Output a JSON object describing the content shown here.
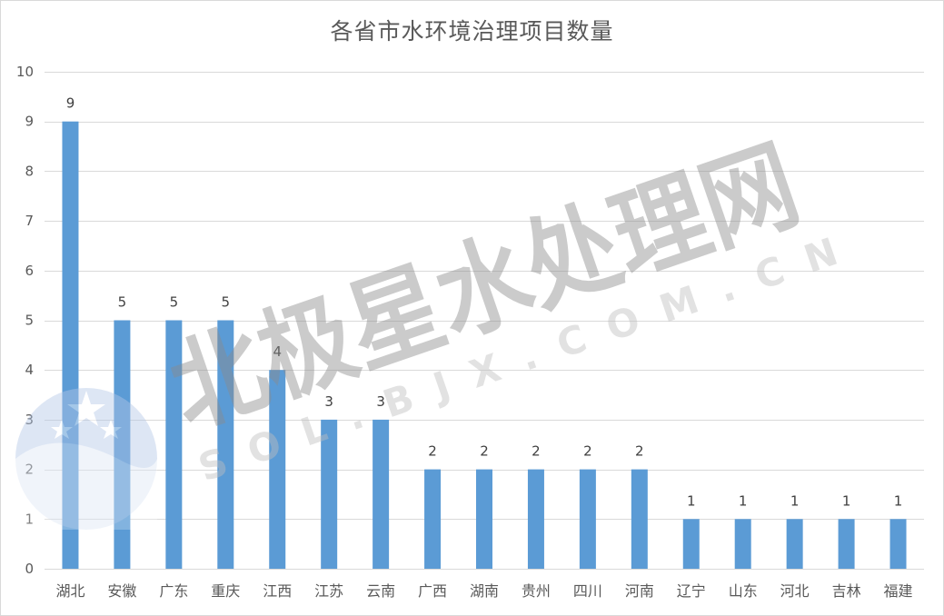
{
  "chart_data": {
    "type": "bar",
    "title": "各省市水环境治理项目数量",
    "xlabel": "",
    "ylabel": "",
    "categories": [
      "湖北",
      "安徽",
      "广东",
      "重庆",
      "江西",
      "江苏",
      "云南",
      "广西",
      "湖南",
      "贵州",
      "四川",
      "河南",
      "辽宁",
      "山东",
      "河北",
      "吉林",
      "福建"
    ],
    "values": [
      9,
      5,
      5,
      5,
      4,
      3,
      3,
      2,
      2,
      2,
      2,
      2,
      1,
      1,
      1,
      1,
      1
    ],
    "ylim": [
      0,
      10
    ],
    "yticks": [
      "0",
      "1",
      "2",
      "3",
      "4",
      "5",
      "6",
      "7",
      "8",
      "9",
      "10"
    ],
    "data_labels": true,
    "grid": true,
    "legend": "none",
    "bar_color": "#5b9bd5",
    "grid_color": "#d9d9d9"
  },
  "watermark": {
    "text_main": "北极星水处理网",
    "text_sub": "SOL.BJX.COM.CN",
    "logo_icon": "polaris-star-logo-icon",
    "color": "#a6a6a6"
  }
}
